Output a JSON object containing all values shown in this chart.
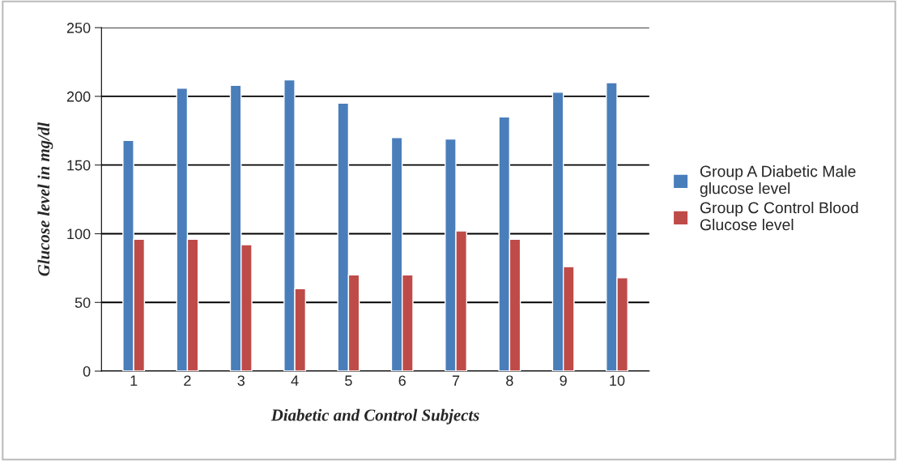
{
  "chart_data": {
    "type": "bar",
    "xlabel": "Diabetic and Control Subjects",
    "ylabel": "Glucose level in mg/dl",
    "categories": [
      "1",
      "2",
      "3",
      "4",
      "5",
      "6",
      "7",
      "8",
      "9",
      "10"
    ],
    "series": [
      {
        "name": "Group A Diabetic Male glucose level",
        "color": "#4a7ebb",
        "values": [
          168,
          206,
          208,
          212,
          195,
          170,
          169,
          185,
          203,
          210
        ]
      },
      {
        "name": "Group C Control Blood Glucose level",
        "color": "#be4b48",
        "values": [
          96,
          96,
          92,
          60,
          70,
          70,
          102,
          96,
          76,
          68
        ]
      }
    ],
    "ylim": [
      0,
      250
    ],
    "yticks": [
      0,
      50,
      100,
      150,
      200,
      250
    ],
    "grid": "y",
    "legend": "right"
  }
}
